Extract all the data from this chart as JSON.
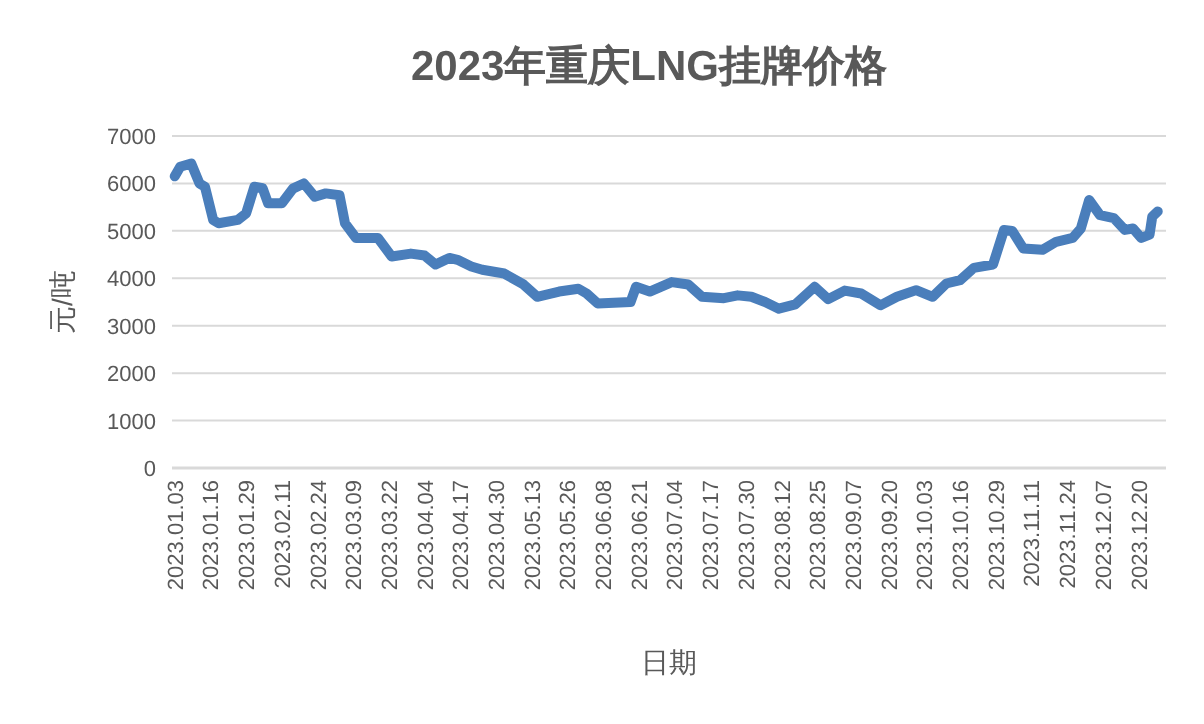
{
  "chart_data": {
    "type": "line",
    "title": "2023年重庆LNG挂牌价格",
    "xlabel": "日期",
    "ylabel": "元/吨",
    "x": [
      "2023-01-03",
      "2023-01-05",
      "2023-01-09",
      "2023-01-12",
      "2023-01-14",
      "2023-01-17",
      "2023-01-19",
      "2023-01-26",
      "2023-01-29",
      "2023-02-01",
      "2023-02-04",
      "2023-02-06",
      "2023-02-11",
      "2023-02-15",
      "2023-02-19",
      "2023-02-23",
      "2023-02-27",
      "2023-03-04",
      "2023-03-06",
      "2023-03-10",
      "2023-03-18",
      "2023-03-23",
      "2023-03-30",
      "2023-04-04",
      "2023-04-08",
      "2023-04-13",
      "2023-04-16",
      "2023-04-21",
      "2023-04-25",
      "2023-05-03",
      "2023-05-10",
      "2023-05-15",
      "2023-05-23",
      "2023-05-30",
      "2023-06-02",
      "2023-06-06",
      "2023-06-18",
      "2023-06-20",
      "2023-06-25",
      "2023-07-03",
      "2023-07-09",
      "2023-07-14",
      "2023-07-22",
      "2023-07-27",
      "2023-08-01",
      "2023-08-06",
      "2023-08-11",
      "2023-08-17",
      "2023-08-24",
      "2023-08-29",
      "2023-09-04",
      "2023-09-10",
      "2023-09-17",
      "2023-09-23",
      "2023-09-30",
      "2023-10-06",
      "2023-10-11",
      "2023-10-16",
      "2023-10-21",
      "2023-10-28",
      "2023-11-01",
      "2023-11-04",
      "2023-11-08",
      "2023-11-15",
      "2023-11-20",
      "2023-11-26",
      "2023-11-29",
      "2023-12-02",
      "2023-12-06",
      "2023-12-11",
      "2023-12-15",
      "2023-12-18",
      "2023-12-21",
      "2023-12-24",
      "2023-12-25",
      "2023-12-27"
    ],
    "series": [
      {
        "color": "#4a7ebb",
        "values": [
          6150,
          6350,
          6420,
          6000,
          5930,
          5230,
          5160,
          5230,
          5370,
          5930,
          5900,
          5580,
          5580,
          5890,
          6000,
          5720,
          5790,
          5750,
          5160,
          4850,
          4850,
          4460,
          4520,
          4480,
          4290,
          4430,
          4390,
          4250,
          4180,
          4100,
          3870,
          3610,
          3720,
          3780,
          3680,
          3470,
          3500,
          3820,
          3720,
          3920,
          3870,
          3610,
          3580,
          3640,
          3610,
          3500,
          3360,
          3450,
          3820,
          3560,
          3740,
          3680,
          3430,
          3610,
          3750,
          3610,
          3890,
          3960,
          4220,
          4290,
          5020,
          5000,
          4630,
          4600,
          4770,
          4850,
          5050,
          5650,
          5330,
          5270,
          5020,
          5050,
          4850,
          4920,
          5300,
          5410
        ]
      }
    ],
    "xlim": [
      "2023-01-02",
      "2023-12-30"
    ],
    "xticks": [
      {
        "value": "2023-01-03",
        "label": "2023.01.03"
      },
      {
        "value": "2023-01-16",
        "label": "2023.01.16"
      },
      {
        "value": "2023-01-29",
        "label": "2023.01.29"
      },
      {
        "value": "2023-02-11",
        "label": "2023.02.11"
      },
      {
        "value": "2023-02-24",
        "label": "2023.02.24"
      },
      {
        "value": "2023-03-09",
        "label": "2023.03.09"
      },
      {
        "value": "2023-03-22",
        "label": "2023.03.22"
      },
      {
        "value": "2023-04-04",
        "label": "2023.04.04"
      },
      {
        "value": "2023-04-17",
        "label": "2023.04.17"
      },
      {
        "value": "2023-04-30",
        "label": "2023.04.30"
      },
      {
        "value": "2023-05-13",
        "label": "2023.05.13"
      },
      {
        "value": "2023-05-26",
        "label": "2023.05.26"
      },
      {
        "value": "2023-06-08",
        "label": "2023.06.08"
      },
      {
        "value": "2023-06-21",
        "label": "2023.06.21"
      },
      {
        "value": "2023-07-04",
        "label": "2023.07.04"
      },
      {
        "value": "2023-07-17",
        "label": "2023.07.17"
      },
      {
        "value": "2023-07-30",
        "label": "2023.07.30"
      },
      {
        "value": "2023-08-12",
        "label": "2023.08.12"
      },
      {
        "value": "2023-08-25",
        "label": "2023.08.25"
      },
      {
        "value": "2023-09-07",
        "label": "2023.09.07"
      },
      {
        "value": "2023-09-20",
        "label": "2023.09.20"
      },
      {
        "value": "2023-10-03",
        "label": "2023.10.03"
      },
      {
        "value": "2023-10-16",
        "label": "2023.10.16"
      },
      {
        "value": "2023-10-29",
        "label": "2023.10.29"
      },
      {
        "value": "2023-11-11",
        "label": "2023.11.11"
      },
      {
        "value": "2023-11-24",
        "label": "2023.11.24"
      },
      {
        "value": "2023-12-07",
        "label": "2023.12.07"
      },
      {
        "value": "2023-12-20",
        "label": "2023.12.20"
      }
    ],
    "ylim": [
      0,
      7000
    ],
    "yticks": [
      0,
      1000,
      2000,
      3000,
      4000,
      5000,
      6000,
      7000
    ],
    "grid": "y",
    "marker": "none",
    "line_style": "solid"
  }
}
